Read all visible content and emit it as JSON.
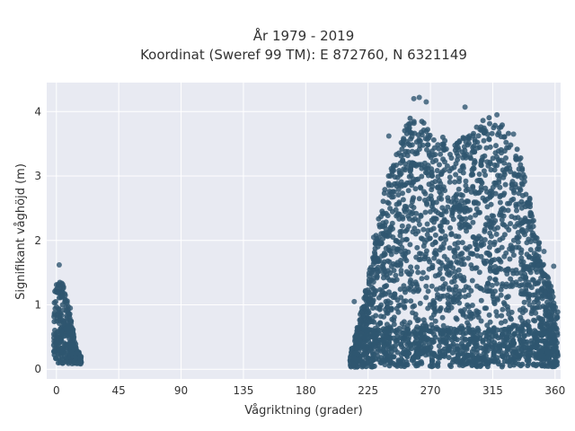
{
  "chart_data": {
    "type": "scatter",
    "title_line1": "År 1979 - 2019",
    "title_line2": "Koordinat (Sweref 99 TM): E 872760, N 6321149",
    "xlabel": "Vågriktning (grader)",
    "ylabel": "Signifikant våghöjd (m)",
    "xlim": [
      -7,
      364
    ],
    "ylim": [
      -0.15,
      4.45
    ],
    "xticks": [
      0,
      45,
      90,
      135,
      180,
      225,
      270,
      315,
      360
    ],
    "yticks": [
      0,
      1,
      2,
      3,
      4
    ],
    "grid": true,
    "legend": "none",
    "colors": {
      "plot_bg": "#e8eaf2",
      "grid": "#ffffff",
      "marker": "#2f5670"
    },
    "clusters": [
      {
        "x_range": [
          -2,
          18
        ],
        "peak_height": [
          [
            -2,
            1.1
          ],
          [
            0,
            1.3
          ],
          [
            2,
            1.45
          ],
          [
            4,
            1.35
          ],
          [
            6,
            1.2
          ],
          [
            8,
            1.05
          ],
          [
            10,
            0.8
          ],
          [
            12,
            0.55
          ],
          [
            14,
            0.35
          ],
          [
            16,
            0.2
          ],
          [
            18,
            0.1
          ]
        ],
        "min_height": 0.05
      },
      {
        "x_range": [
          212,
          362
        ],
        "peak_height": [
          [
            212,
            0.2
          ],
          [
            216,
            0.5
          ],
          [
            220,
            0.9
          ],
          [
            225,
            1.4
          ],
          [
            230,
            2.0
          ],
          [
            235,
            2.6
          ],
          [
            240,
            3.0
          ],
          [
            245,
            3.3
          ],
          [
            250,
            3.6
          ],
          [
            255,
            3.9
          ],
          [
            260,
            4.0
          ],
          [
            265,
            3.95
          ],
          [
            270,
            3.7
          ],
          [
            275,
            3.5
          ],
          [
            280,
            3.6
          ],
          [
            285,
            3.4
          ],
          [
            290,
            3.5
          ],
          [
            295,
            3.6
          ],
          [
            300,
            3.7
          ],
          [
            305,
            3.8
          ],
          [
            310,
            3.9
          ],
          [
            315,
            3.85
          ],
          [
            320,
            3.8
          ],
          [
            325,
            3.7
          ],
          [
            330,
            3.5
          ],
          [
            335,
            3.3
          ],
          [
            340,
            2.8
          ],
          [
            345,
            2.3
          ],
          [
            350,
            1.8
          ],
          [
            355,
            1.4
          ],
          [
            358,
            1.2
          ],
          [
            362,
            0.9
          ]
        ],
        "min_height": 0.0
      }
    ],
    "outliers": [
      {
        "x": 262,
        "y": 4.22
      },
      {
        "x": 258,
        "y": 4.2
      },
      {
        "x": 267,
        "y": 4.15
      },
      {
        "x": 295,
        "y": 4.07
      },
      {
        "x": 318,
        "y": 3.95
      },
      {
        "x": 330,
        "y": 3.65
      },
      {
        "x": 240,
        "y": 3.62
      },
      {
        "x": 2,
        "y": 1.62
      },
      {
        "x": 10,
        "y": 0.95
      },
      {
        "x": 229,
        "y": 2.05
      },
      {
        "x": 215,
        "y": 1.05
      },
      {
        "x": 352,
        "y": 1.83
      },
      {
        "x": 359,
        "y": 1.6
      }
    ]
  }
}
